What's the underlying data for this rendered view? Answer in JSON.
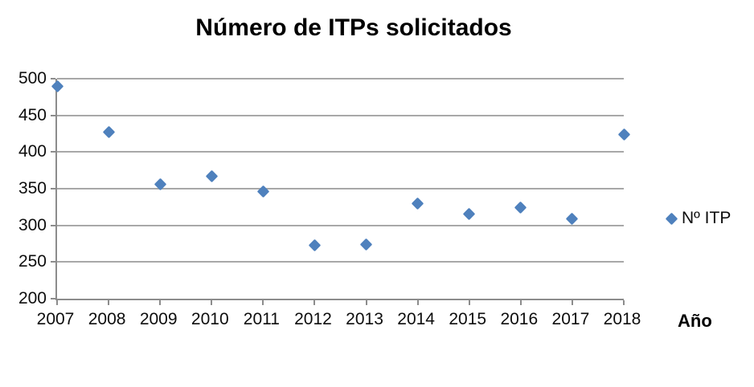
{
  "chart_data": {
    "type": "scatter",
    "title": "Número de ITPs solicitados",
    "xlabel": "Año",
    "ylabel": "",
    "categories": [
      "2007",
      "2008",
      "2009",
      "2010",
      "2011",
      "2012",
      "2013",
      "2014",
      "2015",
      "2016",
      "2017",
      "2018"
    ],
    "series": [
      {
        "name": "Nº ITP",
        "values": [
          490,
          427,
          356,
          367,
          346,
          273,
          274,
          330,
          315,
          324,
          309,
          424
        ]
      }
    ],
    "ylim": [
      200,
      500
    ],
    "yticks": [
      200,
      250,
      300,
      350,
      400,
      450,
      500
    ],
    "grid": "horizontal-only",
    "legend_position": "right",
    "marker": "diamond",
    "colors": {
      "marker": "#4f81bd",
      "gridline": "#a8a8a8",
      "axis": "#8c8c8c",
      "tick_text": "#0d0d0d",
      "title_text": "#000000",
      "background": "#ffffff"
    }
  }
}
